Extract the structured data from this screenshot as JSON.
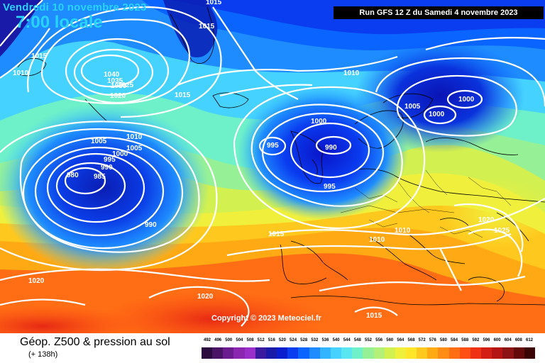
{
  "header": {
    "date_line": "Vendredi 10 novembre 2023",
    "time_line": "7:00 locale",
    "run_info": "Run GFS 12 Z du Samedi 4 novembre 2023"
  },
  "copyright": "Copyright © 2023 Meteociel.fr",
  "legend": {
    "title": "Géop. Z500 & pression au sol",
    "subtitle": "(+ 138h)",
    "scale_values": [
      "492",
      "496",
      "500",
      "504",
      "508",
      "512",
      "516",
      "520",
      "524",
      "528",
      "532",
      "536",
      "540",
      "544",
      "548",
      "552",
      "556",
      "560",
      "564",
      "568",
      "572",
      "576",
      "580",
      "584",
      "588",
      "592",
      "596",
      "600",
      "604",
      "608",
      "612"
    ],
    "scale_colors": [
      "#2b0a3d",
      "#4a1466",
      "#6b1c8f",
      "#8a26b0",
      "#9a2fc9",
      "#3a1a9e",
      "#1a1aa8",
      "#0a1ecd",
      "#0a3cf0",
      "#0a64ff",
      "#1e8cff",
      "#32b4ff",
      "#46d2ff",
      "#5ae6f0",
      "#6ef0c8",
      "#96f096",
      "#b4f078",
      "#d2f050",
      "#f0f03c",
      "#ffe628",
      "#ffc81e",
      "#ffaa14",
      "#ff8c14",
      "#ff6e14",
      "#ff5014",
      "#f03214",
      "#d21e14",
      "#b41414",
      "#8c1414",
      "#640a0a",
      "#3c0505"
    ]
  },
  "pressure_labels": [
    "1015",
    "1015",
    "1015",
    "1010",
    "1040",
    "1035",
    "1030",
    "1025",
    "1020",
    "1015",
    "1010",
    "1000",
    "995",
    "990",
    "995",
    "1005",
    "1000",
    "1000",
    "1005",
    "1010",
    "1005",
    "1000",
    "995",
    "990",
    "985",
    "980",
    "990",
    "1015",
    "1010",
    "1010",
    "1020",
    "1025",
    "1020",
    "1020",
    "1015"
  ],
  "colors": {
    "title_cyan": "#29d3ff",
    "isobar": "#ffffff",
    "coast": "#000000"
  }
}
